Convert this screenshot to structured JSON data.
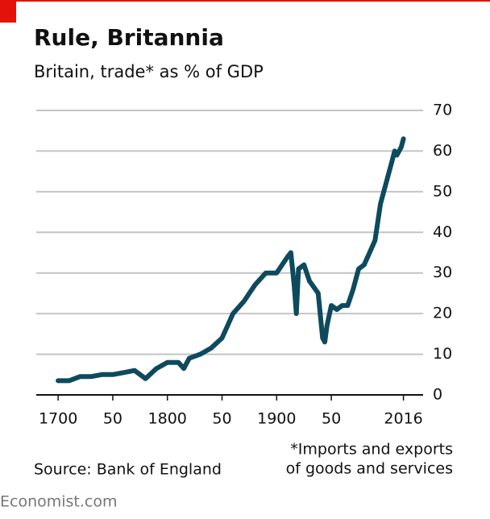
{
  "chart_data": {
    "type": "line",
    "title": "Rule, Britannia",
    "subtitle": "Britain, trade* as % of GDP",
    "source": "Source: Bank of England",
    "footnote": [
      "*Imports and exports",
      "of goods and services"
    ],
    "brand": "Economist.com",
    "x": [
      1700,
      1710,
      1720,
      1730,
      1740,
      1750,
      1760,
      1770,
      1780,
      1790,
      1800,
      1810,
      1815,
      1820,
      1830,
      1840,
      1850,
      1855,
      1860,
      1870,
      1880,
      1890,
      1900,
      1910,
      1913,
      1916,
      1918,
      1920,
      1925,
      1930,
      1938,
      1942,
      1944,
      1946,
      1950,
      1955,
      1960,
      1965,
      1970,
      1975,
      1980,
      1985,
      1990,
      1995,
      2000,
      2005,
      2008,
      2010,
      2014,
      2016
    ],
    "series": [
      {
        "name": "Trade as % of GDP",
        "color": "#0e4a5e",
        "values": [
          3.5,
          3.5,
          4.5,
          4.5,
          5,
          5,
          5.5,
          6,
          4,
          6.5,
          8,
          8,
          6.5,
          9,
          10,
          11.5,
          14,
          17,
          20,
          23,
          27,
          30,
          30,
          34,
          35,
          27,
          20,
          31,
          32,
          28,
          25,
          14,
          13,
          17,
          22,
          21,
          22,
          22,
          26,
          31,
          32,
          35,
          38,
          47,
          52,
          57,
          60,
          59,
          61,
          63
        ]
      }
    ],
    "xlim": [
      1680,
      2034
    ],
    "ylim": [
      0,
      70
    ],
    "xticks": [
      1700,
      {
        "value": 1750,
        "label": "50"
      },
      1800,
      {
        "value": 1850,
        "label": "50"
      },
      1900,
      {
        "value": 1950,
        "label": "50"
      },
      2016
    ],
    "yticks": [
      0,
      10,
      20,
      30,
      40,
      50,
      60,
      70
    ],
    "grid": true
  }
}
